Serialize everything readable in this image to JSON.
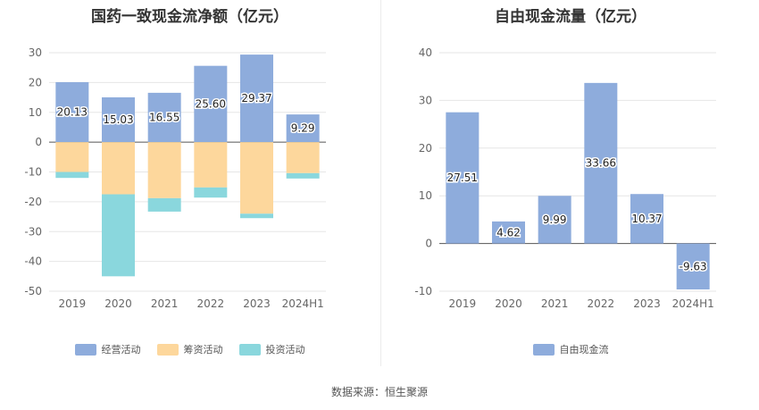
{
  "chart_data": [
    {
      "type": "bar",
      "stacked": true,
      "title": "国药一致现金流净额（亿元）",
      "categories": [
        "2019",
        "2020",
        "2021",
        "2022",
        "2023",
        "2024H1"
      ],
      "ylim": [
        -50,
        30
      ],
      "yticks": [
        30,
        20,
        10,
        0,
        -10,
        -20,
        -30,
        -40,
        -50
      ],
      "series": [
        {
          "name": "经营活动",
          "color": "#8eacdc",
          "values": [
            20.13,
            15.03,
            16.55,
            25.6,
            29.37,
            9.29
          ],
          "labels": [
            "20.13",
            "15.03",
            "16.55",
            "25.60",
            "29.37",
            "9.29"
          ]
        },
        {
          "name": "筹资活动",
          "color": "#fdd79c",
          "values": [
            -10.0,
            -17.5,
            -18.8,
            -15.2,
            -24.0,
            -10.4
          ]
        },
        {
          "name": "投资活动",
          "color": "#8ad7dd",
          "values": [
            -2.0,
            -27.5,
            -4.5,
            -3.4,
            -1.5,
            -1.8
          ]
        }
      ],
      "grid": true,
      "legend": "bottom"
    },
    {
      "type": "bar",
      "title": "自由现金流量（亿元）",
      "categories": [
        "2019",
        "2020",
        "2021",
        "2022",
        "2023",
        "2024H1"
      ],
      "ylim": [
        -10,
        40
      ],
      "yticks": [
        40,
        30,
        20,
        10,
        0,
        -10
      ],
      "series": [
        {
          "name": "自由现金流",
          "color": "#8eacdc",
          "values": [
            27.51,
            4.62,
            9.99,
            33.66,
            10.37,
            -9.63
          ],
          "labels": [
            "27.51",
            "4.62",
            "9.99",
            "33.66",
            "10.37",
            "-9.63"
          ]
        }
      ],
      "grid": true,
      "legend": "bottom"
    }
  ],
  "source": "数据来源：恒生聚源"
}
